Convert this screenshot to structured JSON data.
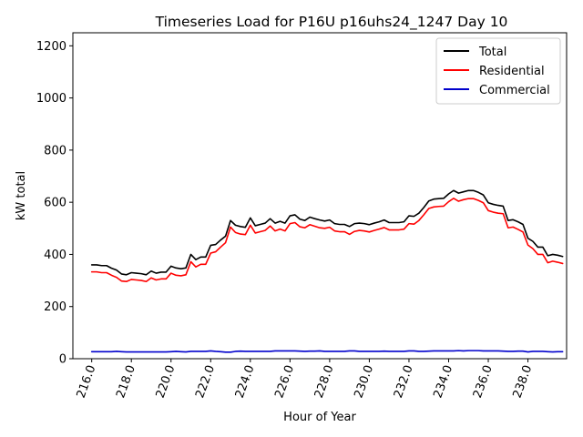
{
  "chart_data": {
    "type": "line",
    "title": "Timeseries Load for P16U p16uhs24_1247  Day 10",
    "xlabel": "Hour of Year",
    "ylabel": "kW total",
    "xlim": [
      215.05,
      239.95
    ],
    "ylim": [
      0,
      1250
    ],
    "xticks": [
      216,
      218,
      220,
      222,
      224,
      226,
      228,
      230,
      232,
      234,
      236,
      238
    ],
    "xtick_labels": [
      "216.0",
      "218.0",
      "220.0",
      "222.0",
      "224.0",
      "226.0",
      "228.0",
      "230.0",
      "232.0",
      "234.0",
      "236.0",
      "238.0"
    ],
    "yticks": [
      0,
      200,
      400,
      600,
      800,
      1000,
      1200
    ],
    "ytick_labels": [
      "0",
      "200",
      "400",
      "600",
      "800",
      "1000",
      "1200"
    ],
    "legend_position": "top-right",
    "x": [
      216.0,
      216.25,
      216.5,
      216.75,
      217.0,
      217.25,
      217.5,
      217.75,
      218.0,
      218.25,
      218.5,
      218.75,
      219.0,
      219.25,
      219.5,
      219.75,
      220.0,
      220.25,
      220.5,
      220.75,
      221.0,
      221.25,
      221.5,
      221.75,
      222.0,
      222.25,
      222.5,
      222.75,
      223.0,
      223.25,
      223.5,
      223.75,
      224.0,
      224.25,
      224.5,
      224.75,
      225.0,
      225.25,
      225.5,
      225.75,
      226.0,
      226.25,
      226.5,
      226.75,
      227.0,
      227.25,
      227.5,
      227.75,
      228.0,
      228.25,
      228.5,
      228.75,
      229.0,
      229.25,
      229.5,
      229.75,
      230.0,
      230.25,
      230.5,
      230.75,
      231.0,
      231.25,
      231.5,
      231.75,
      232.0,
      232.25,
      232.5,
      232.75,
      233.0,
      233.25,
      233.5,
      233.75,
      234.0,
      234.25,
      234.5,
      234.75,
      235.0,
      235.25,
      235.5,
      235.75,
      236.0,
      236.25,
      236.5,
      236.75,
      237.0,
      237.25,
      237.5,
      237.75,
      238.0,
      238.25,
      238.5,
      238.75,
      239.0,
      239.25,
      239.5,
      239.75
    ],
    "series": [
      {
        "name": "Total",
        "color": "#000000",
        "values": [
          360,
          360,
          357,
          357,
          347,
          340,
          325,
          322,
          330,
          328,
          326,
          322,
          336,
          328,
          332,
          332,
          355,
          348,
          345,
          348,
          400,
          380,
          390,
          390,
          435,
          438,
          455,
          470,
          530,
          512,
          507,
          504,
          540,
          510,
          515,
          520,
          537,
          520,
          527,
          520,
          548,
          552,
          535,
          530,
          543,
          537,
          532,
          528,
          532,
          518,
          515,
          515,
          507,
          518,
          520,
          518,
          514,
          520,
          525,
          532,
          522,
          522,
          522,
          525,
          548,
          546,
          558,
          580,
          605,
          612,
          614,
          615,
          632,
          645,
          635,
          640,
          645,
          645,
          638,
          628,
          598,
          592,
          588,
          585,
          530,
          533,
          525,
          515,
          462,
          450,
          428,
          428,
          395,
          400,
          397,
          392
        ]
      },
      {
        "name": "Residential",
        "color": "#ff0000",
        "values": [
          333,
          333,
          330,
          330,
          320,
          312,
          298,
          296,
          304,
          302,
          300,
          296,
          310,
          302,
          306,
          306,
          328,
          320,
          318,
          322,
          372,
          352,
          362,
          362,
          405,
          410,
          428,
          445,
          505,
          484,
          478,
          476,
          512,
          482,
          487,
          492,
          509,
          490,
          497,
          490,
          518,
          522,
          506,
          502,
          514,
          508,
          502,
          500,
          504,
          490,
          487,
          487,
          477,
          488,
          492,
          490,
          486,
          492,
          497,
          503,
          494,
          494,
          494,
          497,
          518,
          516,
          530,
          552,
          576,
          582,
          584,
          585,
          602,
          615,
          604,
          610,
          614,
          614,
          607,
          598,
          568,
          562,
          558,
          556,
          502,
          505,
          496,
          486,
          436,
          422,
          400,
          400,
          368,
          374,
          370,
          365
        ]
      },
      {
        "name": "Commercial",
        "color": "#0000cc",
        "values": [
          27,
          27,
          27,
          27,
          27,
          28,
          27,
          26,
          26,
          26,
          26,
          26,
          26,
          26,
          26,
          26,
          27,
          28,
          27,
          26,
          28,
          28,
          28,
          28,
          30,
          28,
          27,
          25,
          25,
          28,
          29,
          28,
          28,
          28,
          28,
          28,
          28,
          30,
          30,
          30,
          30,
          30,
          29,
          28,
          29,
          29,
          30,
          28,
          28,
          28,
          28,
          28,
          30,
          30,
          28,
          28,
          28,
          28,
          28,
          29,
          28,
          28,
          28,
          28,
          30,
          30,
          28,
          28,
          29,
          30,
          30,
          30,
          30,
          30,
          31,
          30,
          31,
          31,
          31,
          30,
          30,
          30,
          30,
          29,
          28,
          28,
          29,
          29,
          26,
          28,
          28,
          28,
          27,
          26,
          27,
          27
        ]
      }
    ]
  }
}
